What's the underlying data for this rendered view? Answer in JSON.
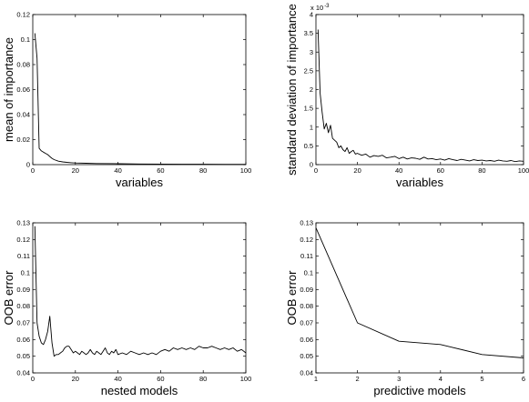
{
  "chart_data": [
    {
      "type": "line",
      "xlabel": "variables",
      "ylabel": "mean of importance",
      "xlim": [
        0,
        100
      ],
      "ylim": [
        0,
        0.12
      ],
      "xticks": [
        "0",
        "20",
        "40",
        "60",
        "80",
        "100"
      ],
      "yticks": [
        "0",
        "0.02",
        "0.04",
        "0.06",
        "0.08",
        "0.1",
        "0.12"
      ],
      "series": [
        {
          "x": [
            1,
            2,
            3,
            4,
            5,
            6,
            7,
            8,
            9,
            10,
            12,
            14,
            16,
            18,
            20,
            25,
            30,
            40,
            50,
            60,
            70,
            80,
            90,
            100
          ],
          "values": [
            0.105,
            0.085,
            0.013,
            0.011,
            0.01,
            0.009,
            0.008,
            0.0065,
            0.005,
            0.004,
            0.0028,
            0.0022,
            0.0018,
            0.0015,
            0.0013,
            0.0011,
            0.0009,
            0.0007,
            0.0005,
            0.0004,
            0.0003,
            0.0003,
            0.0002,
            0.0002
          ]
        }
      ]
    },
    {
      "type": "line",
      "xlabel": "variables",
      "ylabel": "standard deviation of importance",
      "multiplier": "x 10",
      "multiplier_exp": "-3",
      "xlim": [
        0,
        100
      ],
      "ylim": [
        0,
        4
      ],
      "xticks": [
        "0",
        "20",
        "40",
        "60",
        "80",
        "100"
      ],
      "yticks": [
        "0",
        "0.5",
        "1",
        "1.5",
        "2",
        "2.5",
        "3",
        "3.5",
        "4"
      ],
      "series": [
        {
          "x": [
            1,
            2,
            3,
            4,
            5,
            6,
            7,
            8,
            9,
            10,
            11,
            12,
            13,
            14,
            15,
            16,
            17,
            18,
            19,
            20,
            22,
            24,
            26,
            28,
            30,
            32,
            34,
            36,
            38,
            40,
            42,
            44,
            46,
            48,
            50,
            52,
            54,
            56,
            58,
            60,
            62,
            64,
            66,
            68,
            70,
            72,
            74,
            76,
            78,
            80,
            82,
            84,
            86,
            88,
            90,
            92,
            94,
            96,
            98,
            100
          ],
          "values": [
            3.6,
            1.9,
            1.4,
            0.95,
            1.1,
            0.85,
            1.05,
            0.7,
            0.65,
            0.6,
            0.45,
            0.5,
            0.4,
            0.35,
            0.45,
            0.3,
            0.35,
            0.38,
            0.28,
            0.3,
            0.25,
            0.28,
            0.2,
            0.24,
            0.22,
            0.25,
            0.18,
            0.2,
            0.22,
            0.16,
            0.2,
            0.15,
            0.18,
            0.17,
            0.14,
            0.2,
            0.15,
            0.16,
            0.13,
            0.15,
            0.12,
            0.16,
            0.13,
            0.11,
            0.14,
            0.12,
            0.1,
            0.13,
            0.11,
            0.12,
            0.1,
            0.11,
            0.09,
            0.12,
            0.1,
            0.09,
            0.11,
            0.08,
            0.1,
            0.09
          ]
        }
      ]
    },
    {
      "type": "line",
      "xlabel": "nested models",
      "ylabel": "OOB error",
      "xlim": [
        0,
        100
      ],
      "ylim": [
        0.04,
        0.13
      ],
      "xticks": [
        "0",
        "20",
        "40",
        "60",
        "80",
        "100"
      ],
      "yticks": [
        "0.04",
        "0.05",
        "0.06",
        "0.07",
        "0.08",
        "0.09",
        "0.1",
        "0.11",
        "0.12",
        "0.13"
      ],
      "series": [
        {
          "x": [
            1,
            2,
            3,
            4,
            5,
            6,
            7,
            8,
            9,
            10,
            11,
            12,
            13,
            14,
            15,
            16,
            17,
            18,
            19,
            20,
            21,
            22,
            23,
            24,
            25,
            26,
            27,
            28,
            29,
            30,
            31,
            32,
            33,
            34,
            35,
            36,
            37,
            38,
            39,
            40,
            42,
            44,
            46,
            48,
            50,
            52,
            54,
            56,
            58,
            60,
            62,
            64,
            66,
            68,
            70,
            72,
            74,
            76,
            78,
            80,
            82,
            84,
            86,
            88,
            90,
            92,
            94,
            96,
            98,
            100
          ],
          "values": [
            0.128,
            0.07,
            0.062,
            0.058,
            0.057,
            0.06,
            0.065,
            0.074,
            0.058,
            0.05,
            0.051,
            0.051,
            0.052,
            0.053,
            0.055,
            0.056,
            0.056,
            0.054,
            0.052,
            0.053,
            0.052,
            0.051,
            0.053,
            0.052,
            0.051,
            0.052,
            0.054,
            0.052,
            0.051,
            0.053,
            0.052,
            0.051,
            0.053,
            0.055,
            0.052,
            0.051,
            0.053,
            0.052,
            0.054,
            0.051,
            0.052,
            0.051,
            0.053,
            0.052,
            0.051,
            0.052,
            0.051,
            0.052,
            0.051,
            0.053,
            0.054,
            0.053,
            0.055,
            0.054,
            0.055,
            0.054,
            0.055,
            0.054,
            0.056,
            0.055,
            0.055,
            0.056,
            0.055,
            0.054,
            0.055,
            0.054,
            0.055,
            0.053,
            0.054,
            0.052
          ]
        }
      ]
    },
    {
      "type": "line",
      "xlabel": "predictive models",
      "ylabel": "OOB error",
      "xlim": [
        1,
        6
      ],
      "ylim": [
        0.04,
        0.13
      ],
      "xticks": [
        "1",
        "2",
        "3",
        "4",
        "5",
        "6"
      ],
      "yticks": [
        "0.04",
        "0.05",
        "0.06",
        "0.07",
        "0.08",
        "0.09",
        "0.1",
        "0.11",
        "0.12",
        "0.13"
      ],
      "series": [
        {
          "x": [
            1,
            2,
            3,
            4,
            5,
            6
          ],
          "values": [
            0.127,
            0.07,
            0.059,
            0.057,
            0.051,
            0.049
          ]
        }
      ]
    }
  ]
}
